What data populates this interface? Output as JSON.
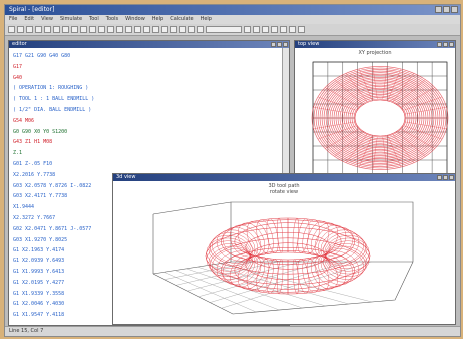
{
  "app": {
    "title": "Spiral - [editor]"
  },
  "menu": {
    "items": [
      "File",
      "Edit",
      "View",
      "Simulate",
      "Tool",
      "Tools",
      "Window",
      "Help",
      "Calculate",
      "Help"
    ]
  },
  "editor": {
    "title": "editor",
    "lines": [
      {
        "text": "G17 G21 G90 G40 G80",
        "color": "#2a63c9"
      },
      {
        "text": "G17",
        "color": "#d0202a"
      },
      {
        "text": "G40",
        "color": "#d0202a"
      },
      {
        "text": "( OPERATION 1: ROUGHING )",
        "color": "#2a63c9"
      },
      {
        "text": "( TOOL 1 : 1 BALL ENDMILL )",
        "color": "#2a63c9"
      },
      {
        "text": "( 1/2\" DIA. BALL ENDMILL )",
        "color": "#2a63c9"
      },
      {
        "text": "G54 M06",
        "color": "#d0202a"
      },
      {
        "text": "G0 G90 X0 Y0 S1200",
        "color": "#1d6f2f"
      },
      {
        "text": "G43 Z1 H1 M08",
        "color": "#d0202a"
      },
      {
        "text": "Z.1",
        "color": "#1d6f2f"
      },
      {
        "text": "G01 Z-.05 F10",
        "color": "#2a63c9"
      },
      {
        "text": "X2.2016 Y.7738",
        "color": "#2a63c9"
      },
      {
        "text": "G03 X2.0578 Y.8726 I-.0822",
        "color": "#2a63c9"
      },
      {
        "text": "G03 X2.4171 Y.7738",
        "color": "#2a63c9"
      },
      {
        "text": "X1.9444",
        "color": "#2a63c9"
      },
      {
        "text": "X2.3272 Y.7667",
        "color": "#2a63c9"
      },
      {
        "text": "G02 X2.0471 Y.8671 J-.0577",
        "color": "#2a63c9"
      },
      {
        "text": "G03 X1.9270 Y.8025",
        "color": "#2a63c9"
      },
      {
        "text": "G1 X2.1963 Y.4174",
        "color": "#2a63c9"
      },
      {
        "text": "G1 X2.0939 Y.6493",
        "color": "#2a63c9"
      },
      {
        "text": "G1 X1.9993 Y.6413",
        "color": "#2a63c9"
      },
      {
        "text": "G1 X2.0195 Y.4277",
        "color": "#2a63c9"
      },
      {
        "text": "G1 X1.9339 Y.3558",
        "color": "#2a63c9"
      },
      {
        "text": "G1 X2.0046 Y.4030",
        "color": "#2a63c9"
      },
      {
        "text": "G1 X1.9547 Y.4118",
        "color": "#2a63c9"
      }
    ]
  },
  "view_top": {
    "title": "top view",
    "plot_title": "XY projection"
  },
  "view_3d": {
    "title": "3d view",
    "plot_title": "3D tool path",
    "plot_subtitle": "rotate view"
  },
  "status": {
    "text": "Line 15, Col 7"
  },
  "colors": {
    "toolpath": "#e23b44",
    "title_bar": "#2a4f97"
  }
}
